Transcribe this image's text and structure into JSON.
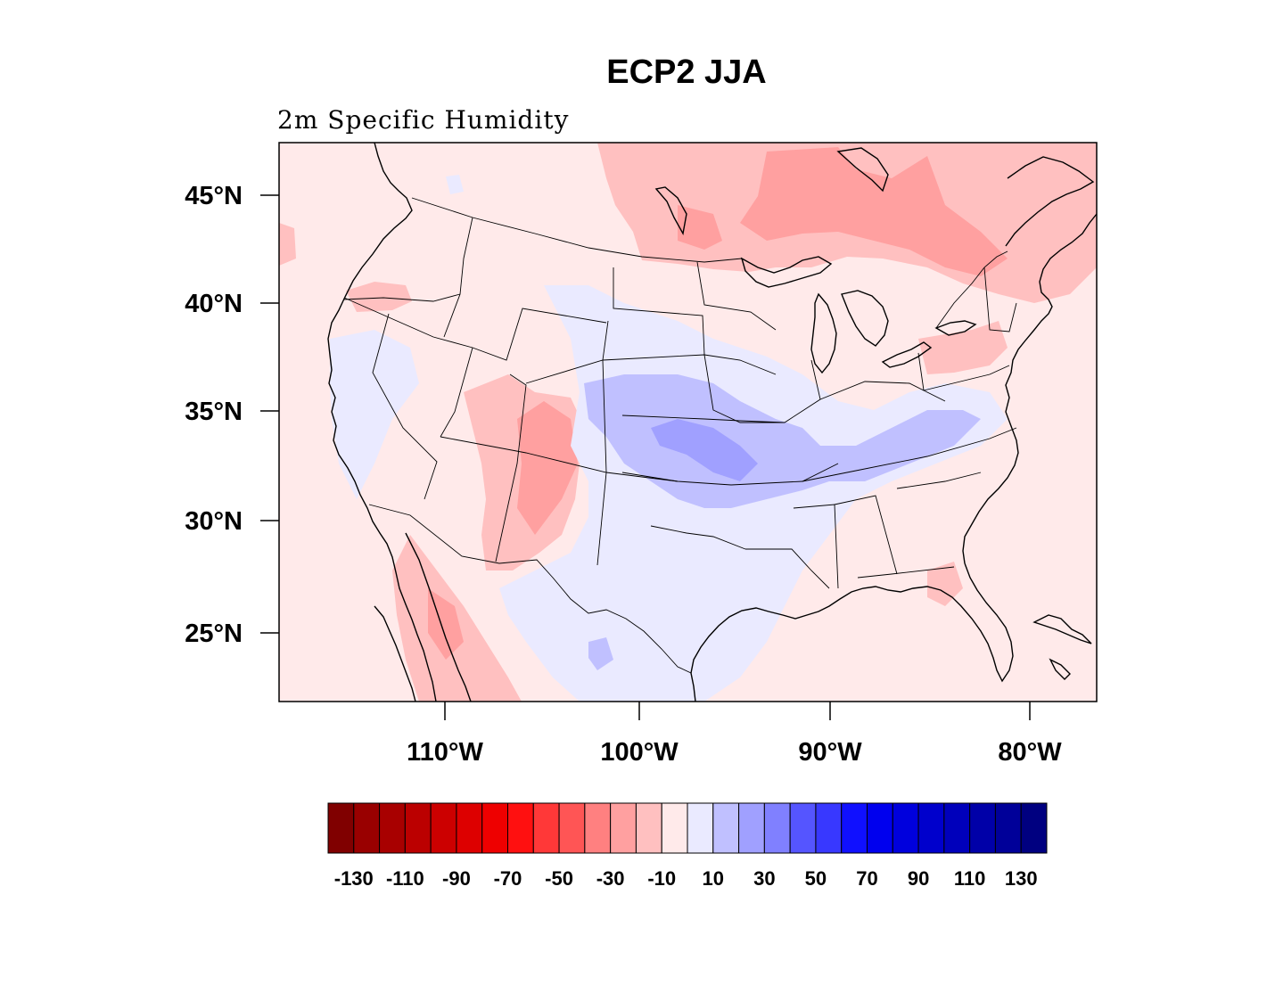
{
  "title": "ECP2 JJA",
  "subtitle": "2m Specific Humidity",
  "lat_axis": [
    "45°N",
    "40°N",
    "35°N",
    "30°N",
    "25°N"
  ],
  "lon_axis": [
    "110°W",
    "100°W",
    "90°W",
    "80°W"
  ],
  "colorbar": {
    "labels": [
      "-130",
      "-110",
      "-90",
      "-70",
      "-50",
      "-30",
      "-10",
      "10",
      "30",
      "50",
      "70",
      "90",
      "110",
      "130"
    ],
    "colors": [
      "#800000",
      "#990000",
      "#a80000",
      "#bb0000",
      "#cc0000",
      "#dd0000",
      "#ee0000",
      "#ff1010",
      "#ff3838",
      "#ff5555",
      "#ff8080",
      "#ffa0a0",
      "#ffc0c0",
      "#ffeaea",
      "#eaeaff",
      "#c0c0ff",
      "#a0a0ff",
      "#8080ff",
      "#5555ff",
      "#3838ff",
      "#1010ff",
      "#0000ee",
      "#0000dd",
      "#0000cc",
      "#0000bb",
      "#0000a8",
      "#000099",
      "#000080"
    ]
  },
  "field_colors": {
    "background": "#ffeaea",
    "light_red": "#ffc0c0",
    "mid_red": "#ffa0a0",
    "light_blue": "#eaeaff",
    "mid_blue": "#c0c0ff",
    "deep_blue": "#a0a0ff"
  }
}
